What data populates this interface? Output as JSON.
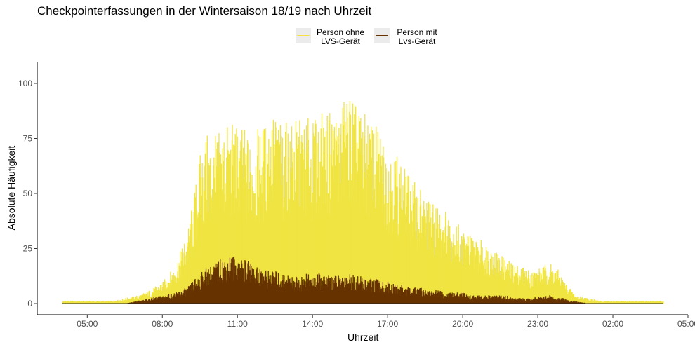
{
  "chart_data": {
    "type": "bar",
    "title": "Checkpointerfassungen in der Wintersaison 18/19 nach Uhrzeit",
    "xlabel": "Uhrzeit",
    "ylabel": "Absolute Häufigkeit",
    "x_ticks": [
      "05:00",
      "08:00",
      "11:00",
      "14:00",
      "17:00",
      "20:00",
      "23:00",
      "02:00",
      "05:00"
    ],
    "y_ticks": [
      0,
      25,
      50,
      75,
      100
    ],
    "ylim": [
      0,
      110
    ],
    "x_range_hours": [
      3.0,
      29.0
    ],
    "legend": {
      "placement": "top",
      "items": [
        {
          "line1": "Person ohne",
          "line2": "LVS-Gerät",
          "color": "#f0e442"
        },
        {
          "line1": "Person mit",
          "line2": "Lvs-Gerät",
          "color": "#663300"
        }
      ]
    },
    "series": [
      {
        "name": "Person ohne LVS-Gerät",
        "color": "#f0e442",
        "x_hour": [
          4.0,
          4.5,
          5.0,
          5.5,
          6.0,
          6.5,
          7.0,
          7.5,
          8.0,
          8.5,
          9.0,
          9.25,
          9.5,
          9.75,
          10.0,
          10.25,
          10.5,
          10.75,
          11.0,
          11.25,
          11.5,
          11.75,
          12.0,
          12.25,
          12.5,
          12.75,
          13.0,
          13.25,
          13.5,
          13.75,
          14.0,
          14.25,
          14.5,
          14.75,
          15.0,
          15.25,
          15.5,
          15.75,
          16.0,
          16.25,
          16.5,
          16.75,
          17.0,
          17.25,
          17.5,
          17.75,
          18.0,
          18.25,
          18.5,
          18.75,
          19.0,
          19.25,
          19.5,
          19.75,
          20.0,
          20.25,
          20.5,
          20.75,
          21.0,
          21.25,
          21.5,
          21.75,
          22.0,
          22.25,
          22.5,
          22.75,
          23.0,
          23.25,
          23.5,
          23.75,
          24.0,
          24.25,
          24.5,
          25.0,
          25.5,
          26.0,
          26.5,
          27.0,
          27.5,
          28.0
        ],
        "values": [
          1,
          1,
          1,
          1,
          1,
          2,
          3,
          5,
          8,
          14,
          27,
          40,
          55,
          62,
          60,
          63,
          65,
          66,
          65,
          64,
          60,
          63,
          65,
          68,
          70,
          65,
          66,
          67,
          67,
          68,
          66,
          70,
          68,
          72,
          70,
          75,
          78,
          72,
          70,
          67,
          65,
          62,
          58,
          57,
          52,
          48,
          45,
          43,
          40,
          37,
          36,
          35,
          32,
          30,
          27,
          26,
          24,
          23,
          22,
          20,
          18,
          16,
          15,
          14,
          13,
          12,
          13,
          14,
          15,
          13,
          9,
          6,
          3,
          2,
          1,
          1,
          1,
          1,
          1,
          1
        ]
      },
      {
        "name": "Person mit Lvs-Gerät",
        "color": "#663300",
        "x_hour": [
          4.0,
          4.5,
          5.0,
          5.5,
          6.0,
          6.5,
          7.0,
          7.5,
          8.0,
          8.5,
          9.0,
          9.25,
          9.5,
          9.75,
          10.0,
          10.25,
          10.5,
          10.75,
          11.0,
          11.25,
          11.5,
          11.75,
          12.0,
          12.25,
          12.5,
          12.75,
          13.0,
          13.25,
          13.5,
          13.75,
          14.0,
          14.25,
          14.5,
          14.75,
          15.0,
          15.25,
          15.5,
          15.75,
          16.0,
          16.25,
          16.5,
          16.75,
          17.0,
          17.25,
          17.5,
          17.75,
          18.0,
          18.25,
          18.5,
          18.75,
          19.0,
          19.25,
          19.5,
          19.75,
          20.0,
          20.25,
          20.5,
          20.75,
          21.0,
          21.25,
          21.5,
          21.75,
          22.0,
          22.25,
          22.5,
          22.75,
          23.0,
          23.25,
          23.5,
          23.75,
          24.0,
          24.25,
          24.5,
          25.0,
          25.5,
          26.0,
          26.5,
          27.0,
          27.5,
          28.0
        ],
        "values": [
          0,
          0,
          0,
          0,
          0,
          0,
          1,
          2,
          3,
          4,
          6,
          9,
          11,
          13,
          14,
          16,
          17,
          18,
          17,
          16,
          15,
          14,
          13,
          12,
          12,
          11,
          11,
          10,
          10,
          11,
          10,
          11,
          10,
          11,
          10,
          11,
          11,
          10,
          10,
          9,
          9,
          8,
          8,
          7,
          7,
          6,
          6,
          6,
          5,
          5,
          5,
          4,
          4,
          4,
          4,
          3,
          3,
          3,
          3,
          3,
          3,
          3,
          2,
          2,
          2,
          2,
          3,
          3,
          3,
          2,
          2,
          1,
          1,
          0,
          0,
          0,
          0,
          0,
          0,
          0
        ]
      }
    ]
  }
}
